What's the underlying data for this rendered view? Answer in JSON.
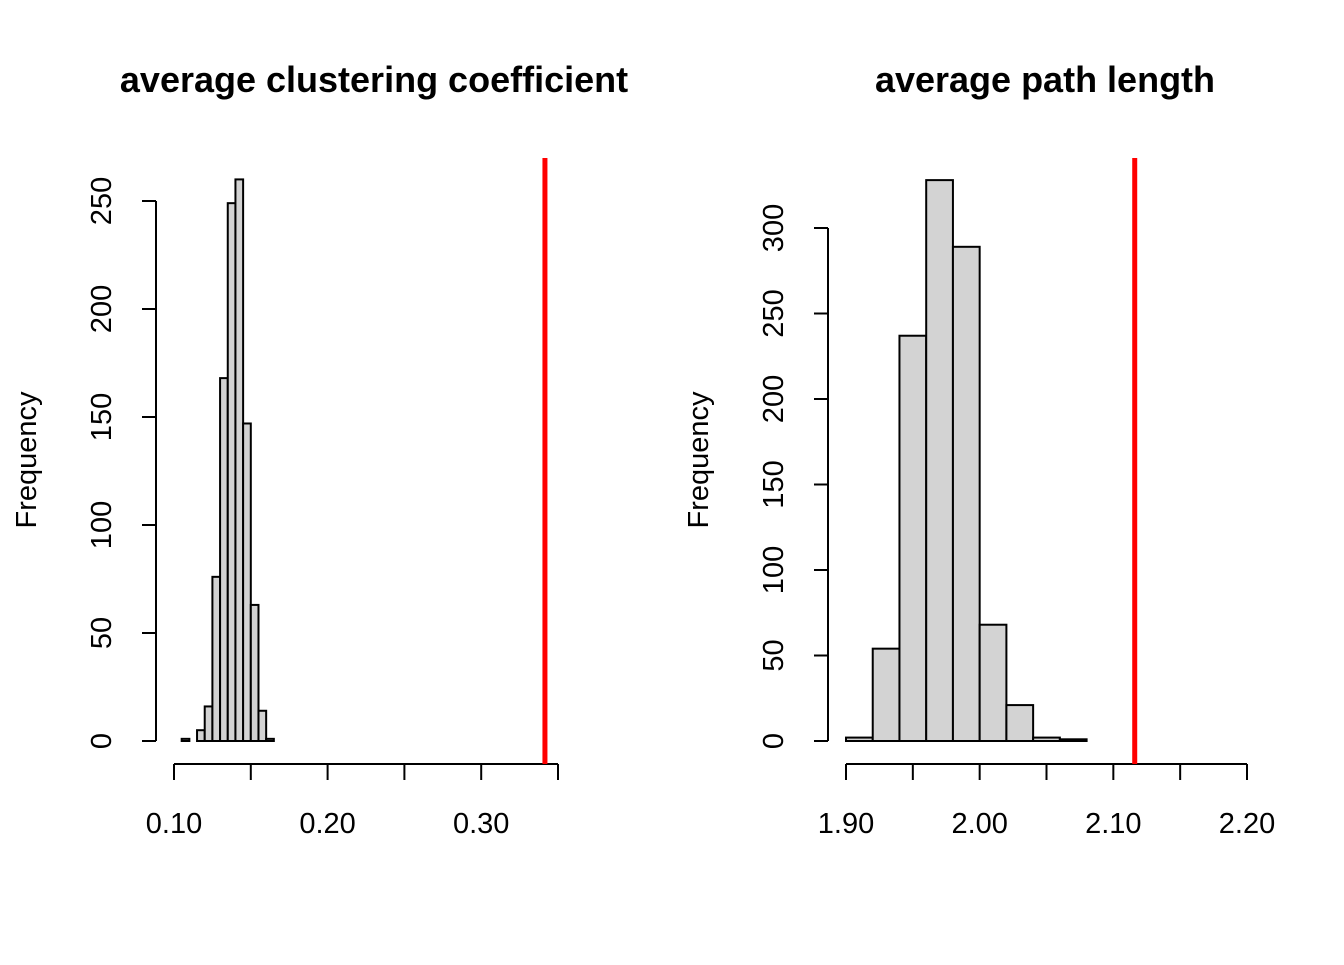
{
  "chart_data": [
    {
      "type": "bar",
      "title": "average clustering coefficient",
      "xlabel": "",
      "ylabel": "Frequency",
      "xlim": [
        0.095,
        0.355
      ],
      "ylim": [
        0,
        270
      ],
      "x_ticks": [
        0.1,
        0.15,
        0.2,
        0.25,
        0.3,
        0.35
      ],
      "x_tick_labels": [
        "0.10",
        "",
        "0.20",
        "",
        "0.30",
        ""
      ],
      "y_ticks": [
        0,
        50,
        100,
        150,
        200,
        250
      ],
      "y_tick_labels": [
        "0",
        "50",
        "100",
        "150",
        "200",
        "250"
      ],
      "bins": [
        {
          "start": 0.105,
          "end": 0.11,
          "count": 1
        },
        {
          "start": 0.11,
          "end": 0.115,
          "count": 0
        },
        {
          "start": 0.115,
          "end": 0.12,
          "count": 5
        },
        {
          "start": 0.12,
          "end": 0.125,
          "count": 16
        },
        {
          "start": 0.125,
          "end": 0.13,
          "count": 76
        },
        {
          "start": 0.13,
          "end": 0.135,
          "count": 168
        },
        {
          "start": 0.135,
          "end": 0.14,
          "count": 249
        },
        {
          "start": 0.14,
          "end": 0.145,
          "count": 260
        },
        {
          "start": 0.145,
          "end": 0.15,
          "count": 147
        },
        {
          "start": 0.15,
          "end": 0.155,
          "count": 63
        },
        {
          "start": 0.155,
          "end": 0.16,
          "count": 14
        },
        {
          "start": 0.16,
          "end": 0.165,
          "count": 1
        }
      ],
      "reference_line": {
        "x": 0.3415,
        "color": "#ff0000"
      },
      "grid": false
    },
    {
      "type": "bar",
      "title": "average path length",
      "xlabel": "",
      "ylabel": "Frequency",
      "xlim": [
        1.885,
        2.215
      ],
      "ylim": [
        0,
        340
      ],
      "x_ticks": [
        1.9,
        1.95,
        2.0,
        2.05,
        2.1,
        2.15,
        2.2
      ],
      "x_tick_labels": [
        "1.90",
        "",
        "2.00",
        "",
        "2.10",
        "",
        "2.20"
      ],
      "y_ticks": [
        0,
        50,
        100,
        150,
        200,
        250,
        300
      ],
      "y_tick_labels": [
        "0",
        "50",
        "100",
        "150",
        "200",
        "250",
        "300"
      ],
      "bins": [
        {
          "start": 1.9,
          "end": 1.92,
          "count": 2
        },
        {
          "start": 1.92,
          "end": 1.94,
          "count": 54
        },
        {
          "start": 1.94,
          "end": 1.96,
          "count": 237
        },
        {
          "start": 1.96,
          "end": 1.98,
          "count": 328
        },
        {
          "start": 1.98,
          "end": 2.0,
          "count": 289
        },
        {
          "start": 2.0,
          "end": 2.02,
          "count": 68
        },
        {
          "start": 2.02,
          "end": 2.04,
          "count": 21
        },
        {
          "start": 2.04,
          "end": 2.06,
          "count": 2
        },
        {
          "start": 2.06,
          "end": 2.08,
          "count": 1
        }
      ],
      "reference_line": {
        "x": 2.116,
        "color": "#ff0000"
      },
      "grid": false
    }
  ]
}
